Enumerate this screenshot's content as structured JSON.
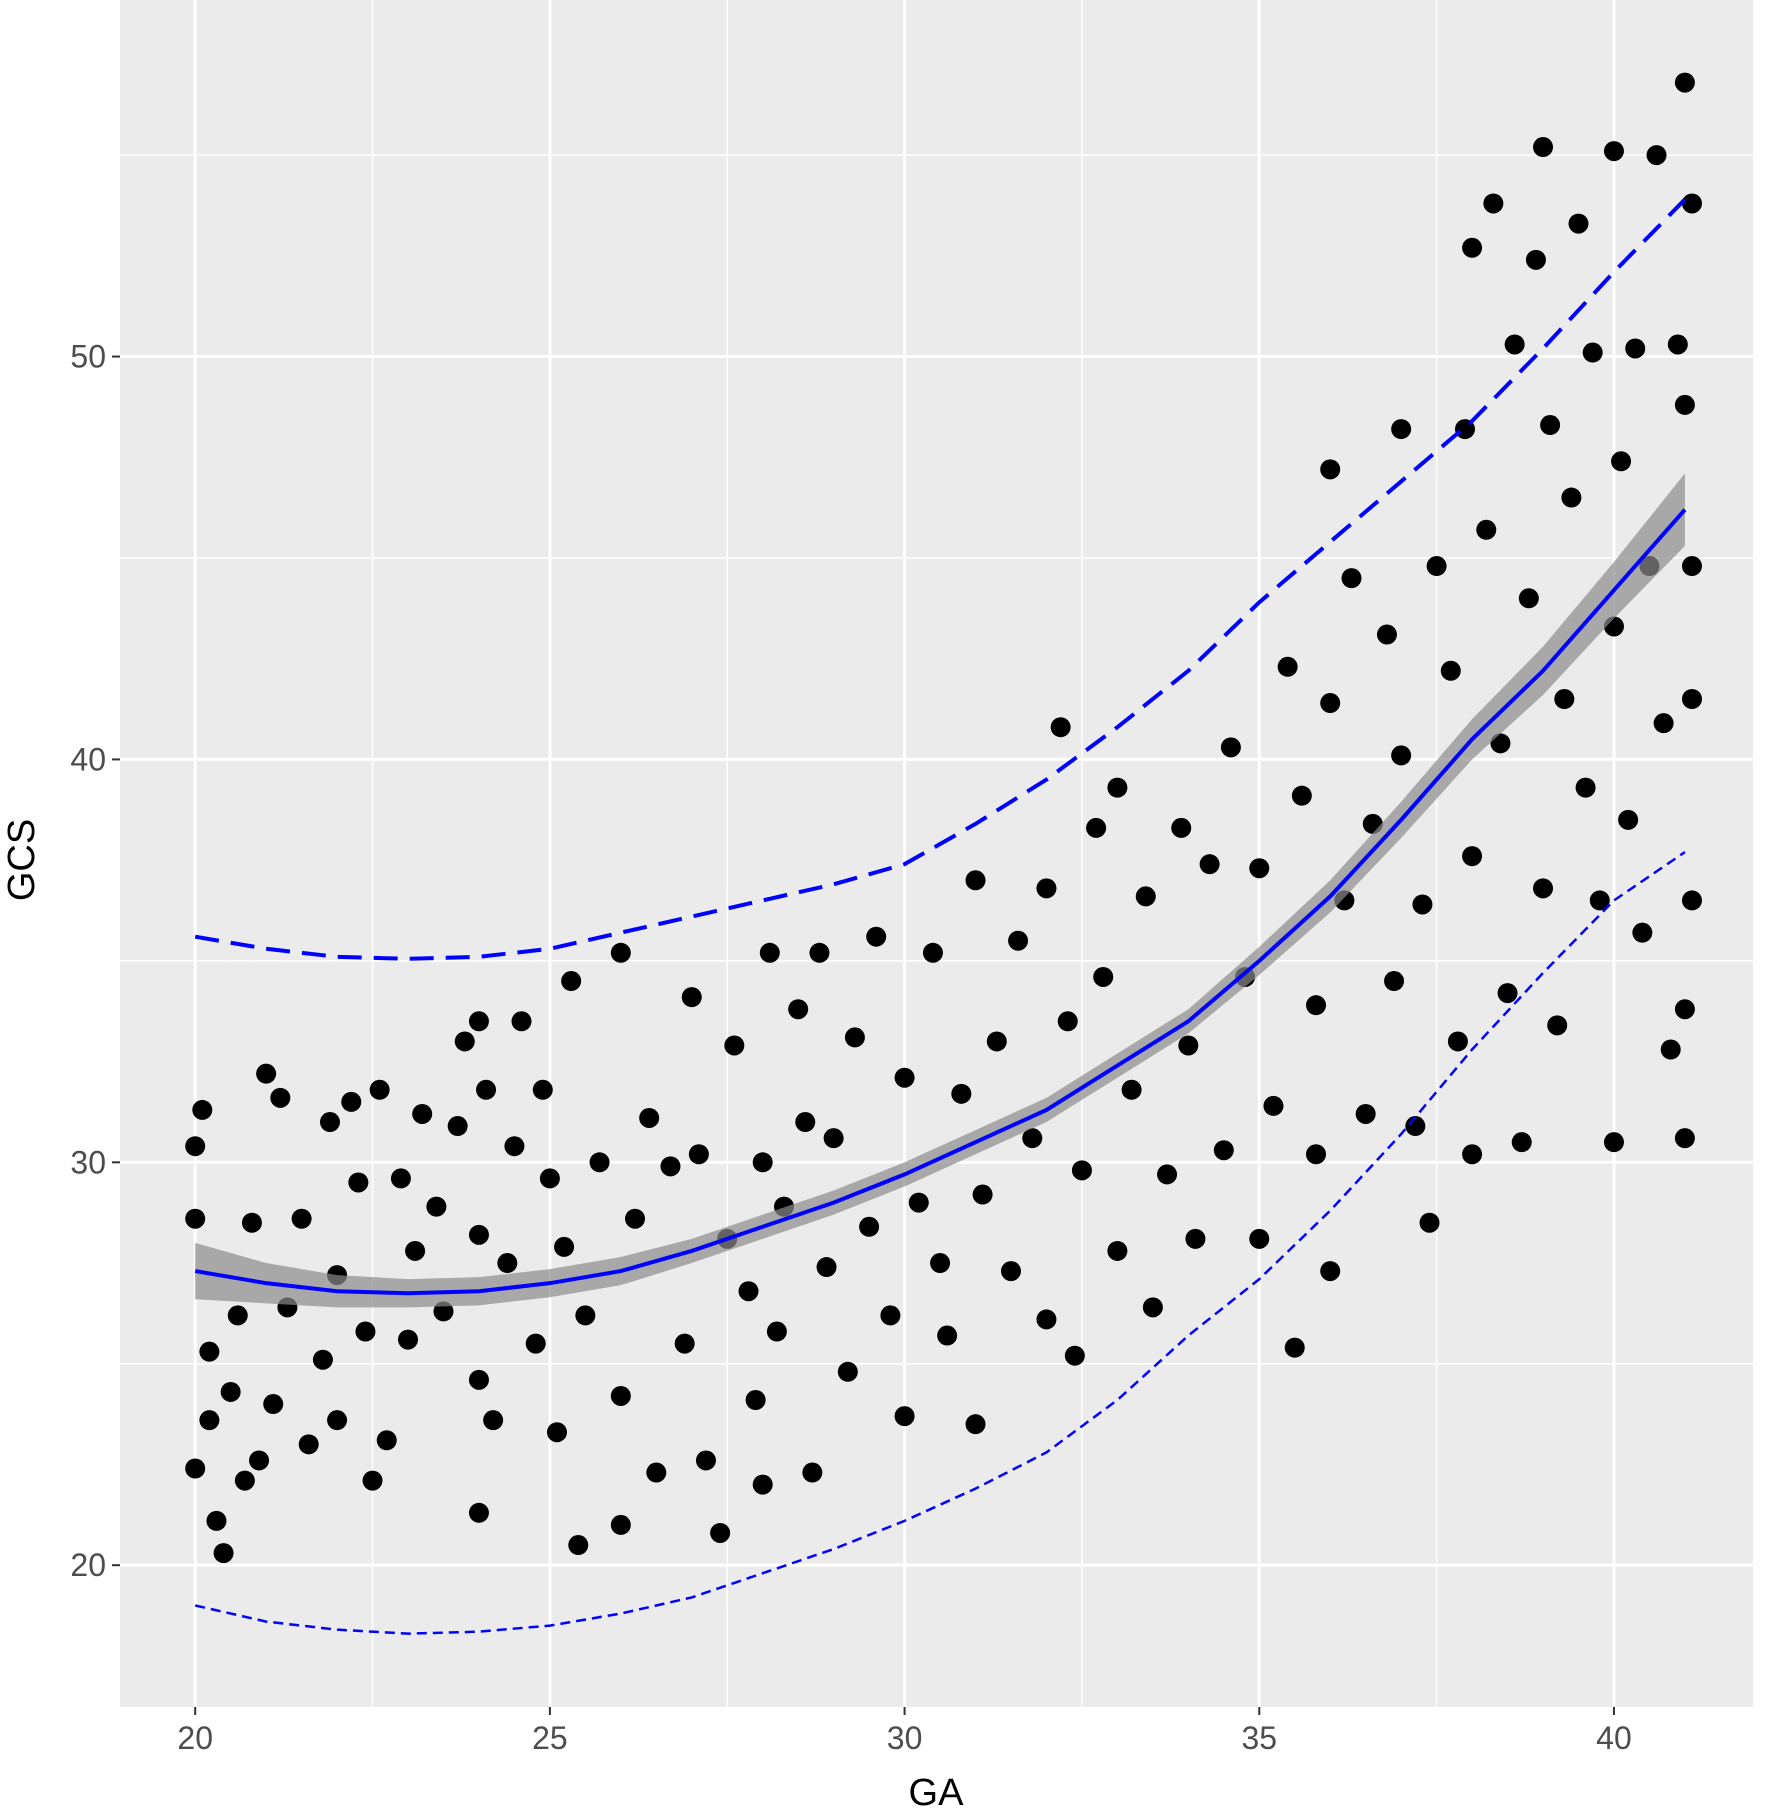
{
  "chart_data": {
    "type": "scatter",
    "xlabel": "GA",
    "ylabel": "GCS",
    "xlim": [
      18.94,
      41.96
    ],
    "ylim": [
      16.48,
      58.85
    ],
    "xticks": [
      20,
      25,
      30,
      35,
      40
    ],
    "yticks": [
      20,
      30,
      40,
      50
    ],
    "xminor": [
      22.5,
      27.5,
      32.5,
      37.5
    ],
    "yminor": [
      25,
      35,
      45,
      55
    ],
    "grid": true,
    "color": "#000000",
    "x": [
      20,
      20,
      20,
      20.1,
      20.2,
      20.2,
      20.3,
      20.4,
      20.5,
      20.6,
      20.7,
      20.8,
      20.9,
      21,
      21.1,
      21.2,
      21.3,
      21.5,
      21.6,
      21.8,
      21.9,
      22,
      22,
      22.2,
      22.3,
      22.4,
      22.5,
      22.6,
      22.7,
      22.9,
      23,
      23.1,
      23.2,
      23.4,
      23.5,
      23.7,
      23.8,
      24,
      24,
      24,
      24,
      24.1,
      24.2,
      24.4,
      24.5,
      24.6,
      24.8,
      24.9,
      25,
      25.1,
      25.2,
      25.3,
      25.4,
      25.5,
      25.7,
      26,
      26,
      26,
      26.2,
      26.4,
      26.5,
      26.7,
      26.9,
      27,
      27.1,
      27.2,
      27.4,
      27.5,
      27.6,
      27.8,
      27.9,
      28,
      28,
      28.1,
      28.2,
      28.3,
      28.5,
      28.6,
      28.7,
      28.8,
      28.9,
      29,
      29.2,
      29.3,
      29.5,
      29.6,
      29.8,
      30,
      30,
      30.2,
      30.4,
      30.5,
      30.6,
      30.8,
      31,
      31,
      31.1,
      31.3,
      31.5,
      31.6,
      31.8,
      32,
      32,
      32.2,
      32.3,
      32.4,
      32.5,
      32.7,
      32.8,
      33,
      33,
      33.2,
      33.4,
      33.5,
      33.7,
      33.9,
      34,
      34.1,
      34.3,
      34.5,
      34.6,
      34.8,
      35,
      35,
      35.2,
      35.4,
      35.5,
      35.6,
      35.8,
      35.8,
      36,
      36,
      36,
      36.2,
      36.3,
      36.5,
      36.6,
      36.8,
      36.9,
      37,
      37,
      37.2,
      37.3,
      37.4,
      37.5,
      37.7,
      37.8,
      37.9,
      38,
      38,
      38,
      38.2,
      38.3,
      38.4,
      38.5,
      38.6,
      38.7,
      38.8,
      38.9,
      39,
      39,
      39.1,
      39.2,
      39.3,
      39.4,
      39.5,
      39.6,
      39.7,
      39.8,
      40,
      40,
      40,
      40.1,
      40.2,
      40.3,
      40.4,
      40.5,
      40.6,
      40.7,
      40.8,
      40.9,
      41,
      41,
      41,
      41.1,
      41.1,
      41.1,
      41.1,
      41
    ],
    "values": [
      22.4,
      28.6,
      30.4,
      31.3,
      25.3,
      23.6,
      21.1,
      20.3,
      24.3,
      26.2,
      22.1,
      28.5,
      22.6,
      32.2,
      24,
      31.6,
      26.4,
      28.6,
      23,
      25.1,
      31,
      27.2,
      23.6,
      31.5,
      29.5,
      25.8,
      22.1,
      31.8,
      23.1,
      29.6,
      25.6,
      27.8,
      31.2,
      28.9,
      26.3,
      30.9,
      33,
      33.5,
      28.2,
      24.6,
      21.3,
      31.8,
      23.6,
      27.5,
      30.4,
      33.5,
      25.5,
      31.8,
      29.6,
      23.3,
      27.9,
      34.5,
      20.5,
      26.2,
      30,
      35.2,
      21,
      24.2,
      28.6,
      31.1,
      22.3,
      29.9,
      25.5,
      34.1,
      30.2,
      22.6,
      20.8,
      28.1,
      32.9,
      26.8,
      24.1,
      30,
      22,
      35.2,
      25.8,
      28.9,
      33.8,
      31,
      22.3,
      35.2,
      27.4,
      30.6,
      24.8,
      33.1,
      28.4,
      35.6,
      26.2,
      32.1,
      23.7,
      29,
      35.2,
      27.5,
      25.7,
      31.7,
      23.5,
      37,
      29.2,
      33,
      27.3,
      35.5,
      30.6,
      36.8,
      26.1,
      40.8,
      33.5,
      25.2,
      29.8,
      38.3,
      34.6,
      39.3,
      27.8,
      31.8,
      36.6,
      26.4,
      29.7,
      38.3,
      32.9,
      28.1,
      37.4,
      30.3,
      40.3,
      34.6,
      28.1,
      37.3,
      31.4,
      42.3,
      25.4,
      39.1,
      30.2,
      33.9,
      47.2,
      27.3,
      41.4,
      36.5,
      44.5,
      31.2,
      38.4,
      43.1,
      34.5,
      48.2,
      40.1,
      30.9,
      36.4,
      28.5,
      44.8,
      42.2,
      33,
      48.2,
      52.7,
      37.6,
      30.2,
      45.7,
      53.8,
      40.4,
      34.2,
      50.3,
      30.5,
      44,
      52.4,
      55.2,
      36.8,
      48.3,
      33.4,
      41.5,
      46.5,
      53.3,
      39.3,
      50.1,
      36.5,
      55.1,
      30.5,
      43.3,
      47.4,
      38.5,
      50.2,
      35.7,
      44.8,
      55,
      40.9,
      32.8,
      50.3,
      56.8,
      48.8,
      30.6,
      53.8,
      41.5,
      36.5,
      44.8,
      33.8
    ],
    "fit": {
      "color": "#0000ff",
      "band_color": "#8c8c8c",
      "x": [
        20,
        21,
        22,
        23,
        24,
        25,
        26,
        27,
        28,
        29,
        30,
        31,
        32,
        33,
        34,
        35,
        36,
        37,
        38,
        39,
        40,
        41
      ],
      "values": [
        27.3,
        27.0,
        26.8,
        26.75,
        26.8,
        27.0,
        27.3,
        27.8,
        28.4,
        29.0,
        29.7,
        30.5,
        31.3,
        32.4,
        33.5,
        35.0,
        36.6,
        38.5,
        40.5,
        42.2,
        44.2,
        46.2
      ],
      "band_lower": [
        26.6,
        26.5,
        26.4,
        26.4,
        26.45,
        26.65,
        26.95,
        27.5,
        28.1,
        28.7,
        29.4,
        30.2,
        31.0,
        32.1,
        33.2,
        34.65,
        36.2,
        38.05,
        40.0,
        41.6,
        43.5,
        45.3
      ],
      "band_upper": [
        28.0,
        27.5,
        27.2,
        27.1,
        27.15,
        27.35,
        27.65,
        28.1,
        28.7,
        29.3,
        30.0,
        30.8,
        31.6,
        32.7,
        33.8,
        35.35,
        37.0,
        38.95,
        41.0,
        42.8,
        44.9,
        47.1
      ]
    },
    "limits": [
      {
        "color": "#0000ff",
        "dash": "long",
        "x": [
          20,
          21,
          22,
          23,
          24,
          25,
          26,
          27,
          28,
          29,
          30,
          31,
          32,
          33,
          34,
          35,
          36,
          37,
          38,
          39,
          40,
          41
        ],
        "values": [
          35.6,
          35.3,
          35.1,
          35.05,
          35.1,
          35.3,
          35.7,
          36.1,
          36.5,
          36.9,
          37.4,
          38.4,
          39.5,
          40.8,
          42.2,
          43.9,
          45.4,
          46.9,
          48.4,
          50.2,
          52.1,
          53.9
        ]
      },
      {
        "color": "#0000ff",
        "dash": "short",
        "x": [
          20,
          21,
          22,
          23,
          24,
          25,
          26,
          27,
          28,
          29,
          30,
          31,
          32,
          33,
          34,
          35,
          36,
          37,
          38,
          39,
          40,
          41
        ],
        "values": [
          19.0,
          18.6,
          18.4,
          18.3,
          18.35,
          18.5,
          18.8,
          19.2,
          19.8,
          20.4,
          21.1,
          21.9,
          22.8,
          24.1,
          25.7,
          27.1,
          28.8,
          30.7,
          32.8,
          34.7,
          36.5,
          37.7
        ]
      }
    ]
  }
}
